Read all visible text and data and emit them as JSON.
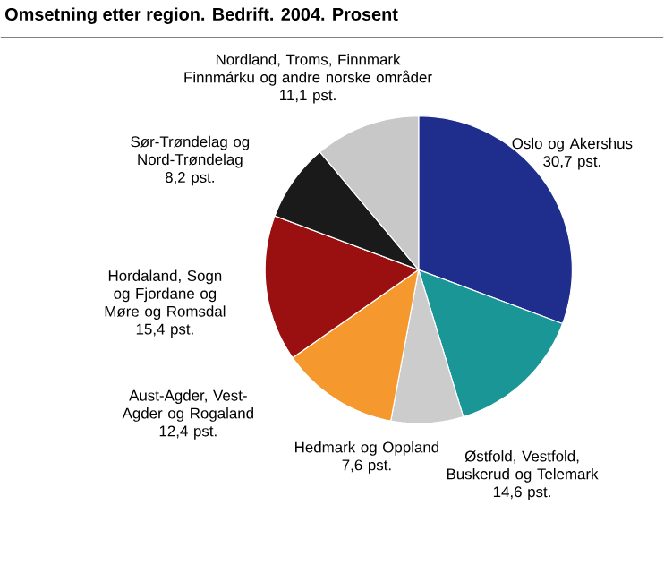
{
  "chart_data": {
    "type": "pie",
    "title": "Omsetning etter region. Bedrift. 2004. Prosent",
    "categories": [
      "Oslo og Akershus",
      "Østfold, Vestfold, Buskerud og Telemark",
      "Hedmark og Oppland",
      "Aust-Agder, Vest-Agder og Rogaland",
      "Hordaland, Sogn og Fjordane og Møre og Romsdal",
      "Sør-Trøndelag og Nord-Trøndelag",
      "Nordland, Troms, Finnmark Finnmárku og andre norske områder"
    ],
    "values": [
      30.7,
      14.6,
      7.6,
      12.4,
      15.4,
      8.2,
      11.1
    ],
    "colors": [
      "#1f2d8c",
      "#1a9696",
      "#cccccc",
      "#f5982e",
      "#9a1010",
      "#1a1a1a",
      "#c8c8c8"
    ],
    "value_labels": [
      "30,7 pst.",
      "14,6 pst.",
      "7,6 pst.",
      "12,4 pst.",
      "15,4 pst.",
      "8,2 pst.",
      "11,1 pst."
    ]
  }
}
